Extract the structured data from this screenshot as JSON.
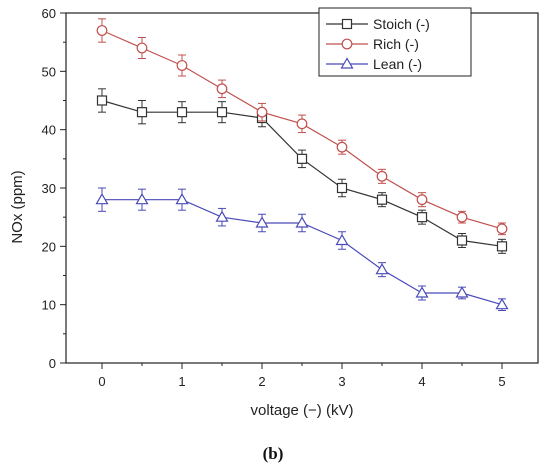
{
  "caption": "(b)",
  "chart_data": {
    "type": "line",
    "xlabel": "voltage (−) (kV)",
    "ylabel": "NOx (ppm)",
    "xlim": [
      -0.45,
      5.45
    ],
    "ylim": [
      0,
      60
    ],
    "xticks": [
      0,
      1,
      2,
      3,
      4,
      5
    ],
    "yticks": [
      0,
      10,
      20,
      30,
      40,
      50,
      60
    ],
    "x": [
      0,
      0.5,
      1,
      1.5,
      2,
      2.5,
      3,
      3.5,
      4,
      4.5,
      5
    ],
    "grid": false,
    "legend_position": "top-right",
    "series": [
      {
        "name": "Stoich (-)",
        "marker": "square",
        "color": "#333333",
        "values": [
          45,
          43,
          43,
          43,
          42,
          35,
          30,
          28,
          25,
          21,
          20
        ],
        "errors": [
          2,
          2,
          1.8,
          1.8,
          1.5,
          1.5,
          1.5,
          1.2,
          1.2,
          1.2,
          1.2
        ]
      },
      {
        "name": "Rich (-)",
        "marker": "circle",
        "color": "#c0504d",
        "values": [
          57,
          54,
          51,
          47,
          43,
          41,
          37,
          32,
          28,
          25,
          23
        ],
        "errors": [
          2,
          1.8,
          1.8,
          1.5,
          1.5,
          1.5,
          1.2,
          1.2,
          1.2,
          1,
          1
        ]
      },
      {
        "name": "Lean (-)",
        "marker": "triangle",
        "color": "#4a4ab8",
        "values": [
          28,
          28,
          28,
          25,
          24,
          24,
          21,
          16,
          12,
          12,
          10
        ],
        "errors": [
          2,
          1.8,
          1.8,
          1.5,
          1.5,
          1.5,
          1.5,
          1.2,
          1.2,
          1,
          1
        ]
      }
    ]
  }
}
